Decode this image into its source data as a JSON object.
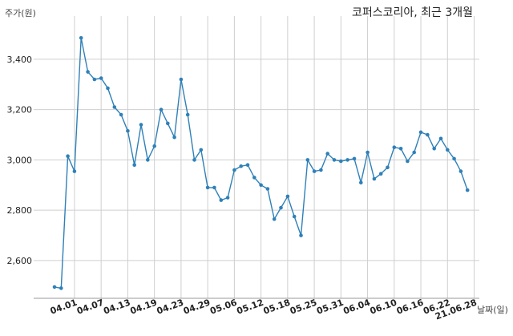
{
  "chart_data": {
    "type": "line",
    "title": "코퍼스코리아, 최근 3개월",
    "ylabel": "주가(원)",
    "xlabel": "날짜(일)",
    "ylim": [
      2450,
      3540
    ],
    "yticks": [
      2600,
      2800,
      3000,
      3200,
      3400
    ],
    "ytick_labels": [
      "2,600",
      "2,800",
      "3,000",
      "3,200",
      "3,400"
    ],
    "xtick_labels": [
      "04.01",
      "04.07",
      "04.13",
      "04.19",
      "04.23",
      "04.29",
      "05.06",
      "05.12",
      "05.18",
      "05.25",
      "05.31",
      "06.04",
      "06.10",
      "06.16",
      "06.22",
      "21.06.28"
    ],
    "xtick_index": [
      3,
      7,
      11,
      15,
      19,
      23,
      27,
      31,
      35,
      39,
      43,
      47,
      51,
      55,
      59,
      63
    ],
    "grid": true,
    "line_color": "#2f80b8",
    "series": [
      {
        "values": [
          2495,
          2490,
          3015,
          2955,
          3485,
          3350,
          3320,
          3325,
          3285,
          3210,
          3180,
          3115,
          2980,
          3140,
          3000,
          3055,
          3200,
          3145,
          3090,
          3320,
          3180,
          3000,
          3040,
          2890,
          2890,
          2840,
          2850,
          2960,
          2975,
          2980,
          2930,
          2900,
          2885,
          2765,
          2810,
          2855,
          2775,
          2700,
          3000,
          2955,
          2960,
          3025,
          3000,
          2995,
          3000,
          3005,
          2910,
          3030,
          2925,
          2945,
          2970,
          3050,
          3045,
          2995,
          3030,
          3110,
          3100,
          3045,
          3085,
          3040,
          3005,
          2955,
          2880
        ]
      }
    ]
  }
}
